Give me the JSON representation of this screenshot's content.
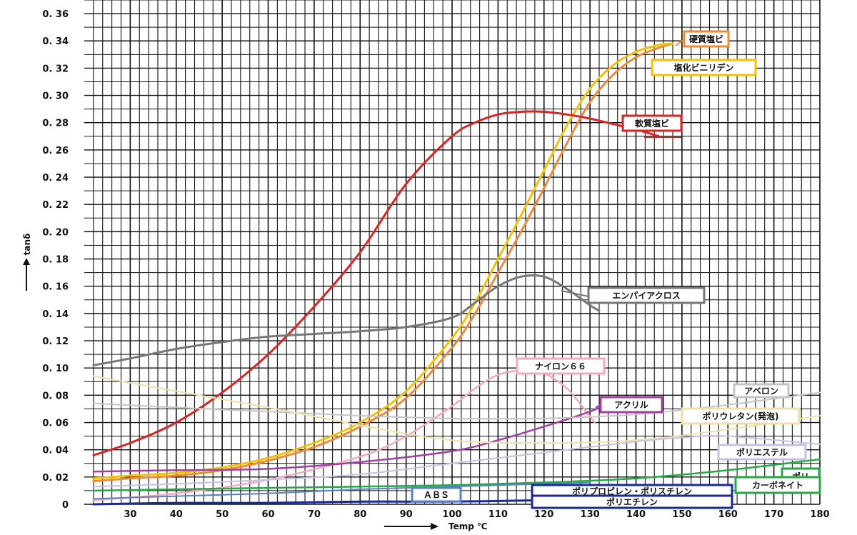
{
  "chart_data": {
    "type": "line",
    "xlabel": "Temp ℃",
    "ylabel": "tanδ",
    "xlim": [
      20,
      180
    ],
    "ylim": [
      0,
      0.37
    ],
    "xticks": [
      "30",
      "40",
      "50",
      "60",
      "70",
      "80",
      "90",
      "100",
      "110",
      "120",
      "130",
      "140",
      "150",
      "160",
      "170",
      "180"
    ],
    "yticks": [
      "0",
      "0. 02",
      "0. 04",
      "0. 06",
      "0. 08",
      "0. 10",
      "0. 12",
      "0. 14",
      "0. 16",
      "0. 18",
      "0. 20",
      "0. 22",
      "0. 24",
      "0. 26",
      "0. 28",
      "0. 30",
      "0. 32",
      "0. 34",
      "0. 36"
    ],
    "grid": true,
    "series": [
      {
        "name": "硬質塩ビ",
        "color": "#f0883a",
        "x": [
          22,
          30,
          40,
          50,
          60,
          70,
          80,
          90,
          100,
          105,
          110,
          115,
          120,
          125,
          130,
          135,
          140,
          145,
          148
        ],
        "y": [
          0.017,
          0.019,
          0.021,
          0.025,
          0.032,
          0.042,
          0.057,
          0.078,
          0.115,
          0.14,
          0.17,
          0.2,
          0.232,
          0.265,
          0.295,
          0.315,
          0.328,
          0.335,
          0.338
        ]
      },
      {
        "name": "塩化ビニリデン",
        "color": "#f5c000",
        "x": [
          22,
          30,
          40,
          50,
          60,
          70,
          80,
          90,
          100,
          105,
          110,
          115,
          120,
          125,
          130,
          135,
          140,
          145,
          148
        ],
        "y": [
          0.019,
          0.021,
          0.023,
          0.027,
          0.034,
          0.045,
          0.06,
          0.083,
          0.122,
          0.148,
          0.18,
          0.212,
          0.245,
          0.278,
          0.305,
          0.322,
          0.332,
          0.337,
          0.338
        ]
      },
      {
        "name": "軟質塩ビ",
        "color": "#dd2222",
        "x": [
          22,
          30,
          40,
          50,
          60,
          70,
          80,
          90,
          100,
          105,
          110,
          115,
          120,
          125,
          130,
          135,
          140,
          145
        ],
        "y": [
          0.036,
          0.045,
          0.06,
          0.082,
          0.11,
          0.145,
          0.185,
          0.235,
          0.27,
          0.28,
          0.286,
          0.288,
          0.288,
          0.286,
          0.283,
          0.279,
          0.275,
          0.27
        ]
      },
      {
        "name": "エンパイアクロス",
        "color": "#777777",
        "x": [
          22,
          30,
          40,
          50,
          60,
          70,
          80,
          90,
          100,
          105,
          110,
          115,
          120,
          125,
          130,
          132
        ],
        "y": [
          0.102,
          0.107,
          0.114,
          0.119,
          0.123,
          0.125,
          0.127,
          0.13,
          0.137,
          0.148,
          0.16,
          0.167,
          0.167,
          0.158,
          0.146,
          0.142
        ]
      },
      {
        "name": "ナイロン６６",
        "color": "#f2a9bd",
        "x": [
          22,
          40,
          60,
          80,
          90,
          100,
          105,
          110,
          115,
          120,
          125,
          128,
          131
        ],
        "y": [
          0.003,
          0.008,
          0.018,
          0.035,
          0.05,
          0.072,
          0.085,
          0.095,
          0.098,
          0.096,
          0.085,
          0.073,
          0.06
        ]
      },
      {
        "name": "アクリル",
        "color": "#a040a0",
        "x": [
          22,
          40,
          60,
          80,
          100,
          110,
          120,
          130,
          133
        ],
        "y": [
          0.024,
          0.025,
          0.026,
          0.031,
          0.039,
          0.047,
          0.057,
          0.068,
          0.073
        ]
      },
      {
        "name": "アベロン",
        "color": "#c4c4c4",
        "x": [
          22,
          40,
          60,
          80,
          100,
          120,
          140,
          160,
          180
        ],
        "y": [
          0.074,
          0.071,
          0.068,
          0.065,
          0.063,
          0.063,
          0.066,
          0.073,
          0.082
        ]
      },
      {
        "name": "ポリウレタン(発泡)",
        "color": "#f0e0a8",
        "x": [
          22,
          40,
          60,
          80,
          100,
          120,
          140,
          160,
          180
        ],
        "y": [
          0.094,
          0.083,
          0.071,
          0.058,
          0.047,
          0.045,
          0.047,
          0.055,
          0.065
        ]
      },
      {
        "name": "ポリエステル",
        "color": "#c8c0e4",
        "x": [
          22,
          40,
          60,
          80,
          100,
          120,
          140,
          150,
          160,
          180
        ],
        "y": [
          0.013,
          0.015,
          0.018,
          0.022,
          0.03,
          0.038,
          0.046,
          0.049,
          0.05,
          0.044
        ]
      },
      {
        "name": "ポリ カーボネイト",
        "color": "#22aa44",
        "x": [
          22,
          40,
          60,
          80,
          100,
          120,
          140,
          160,
          180
        ],
        "y": [
          0.01,
          0.011,
          0.012,
          0.013,
          0.014,
          0.016,
          0.019,
          0.025,
          0.033
        ]
      },
      {
        "name": "ABS",
        "color": "#5a80c8",
        "x": [
          22,
          40,
          60,
          80,
          100,
          120,
          130
        ],
        "y": [
          0.004,
          0.006,
          0.008,
          0.011,
          0.013,
          0.015,
          0.016
        ]
      },
      {
        "name": "ポリプロピレン・ポリスチレン ポリエチレン",
        "color": "#1a2a9a",
        "x": [
          22,
          40,
          60,
          80,
          100,
          120,
          130
        ],
        "y": [
          0.0,
          0.001,
          0.001,
          0.002,
          0.002,
          0.003,
          0.004
        ]
      }
    ],
    "labels": [
      {
        "text": "硬質塩ビ",
        "color": "#f0883a"
      },
      {
        "text": "塩化ビニリデン",
        "color": "#f5c000"
      },
      {
        "text": "軟質塩ビ",
        "color": "#dd2222"
      },
      {
        "text": "エンパイアクロス",
        "color": "#777777"
      },
      {
        "text": "ナイロン６６",
        "color": "#f2a9bd"
      },
      {
        "text": "アクリル",
        "color": "#a040a0"
      },
      {
        "text": "アベロン",
        "color": "#c4c4c4"
      },
      {
        "text": "ポリウレタン(発泡)",
        "color": "#f0e0a8"
      },
      {
        "text": "ポリエステル",
        "color": "#c8c0e4"
      },
      {
        "text": "ポリ",
        "color": "#22aa44"
      },
      {
        "text": "カーボネイト",
        "color": "#22aa44"
      },
      {
        "text": "ＡＢＳ",
        "color": "#5a80c8"
      },
      {
        "text": "ポリプロピレン・ポリスチレン",
        "color": "#1a2a9a"
      },
      {
        "text": "ポリエチレン",
        "color": "#1a2a9a"
      }
    ]
  }
}
